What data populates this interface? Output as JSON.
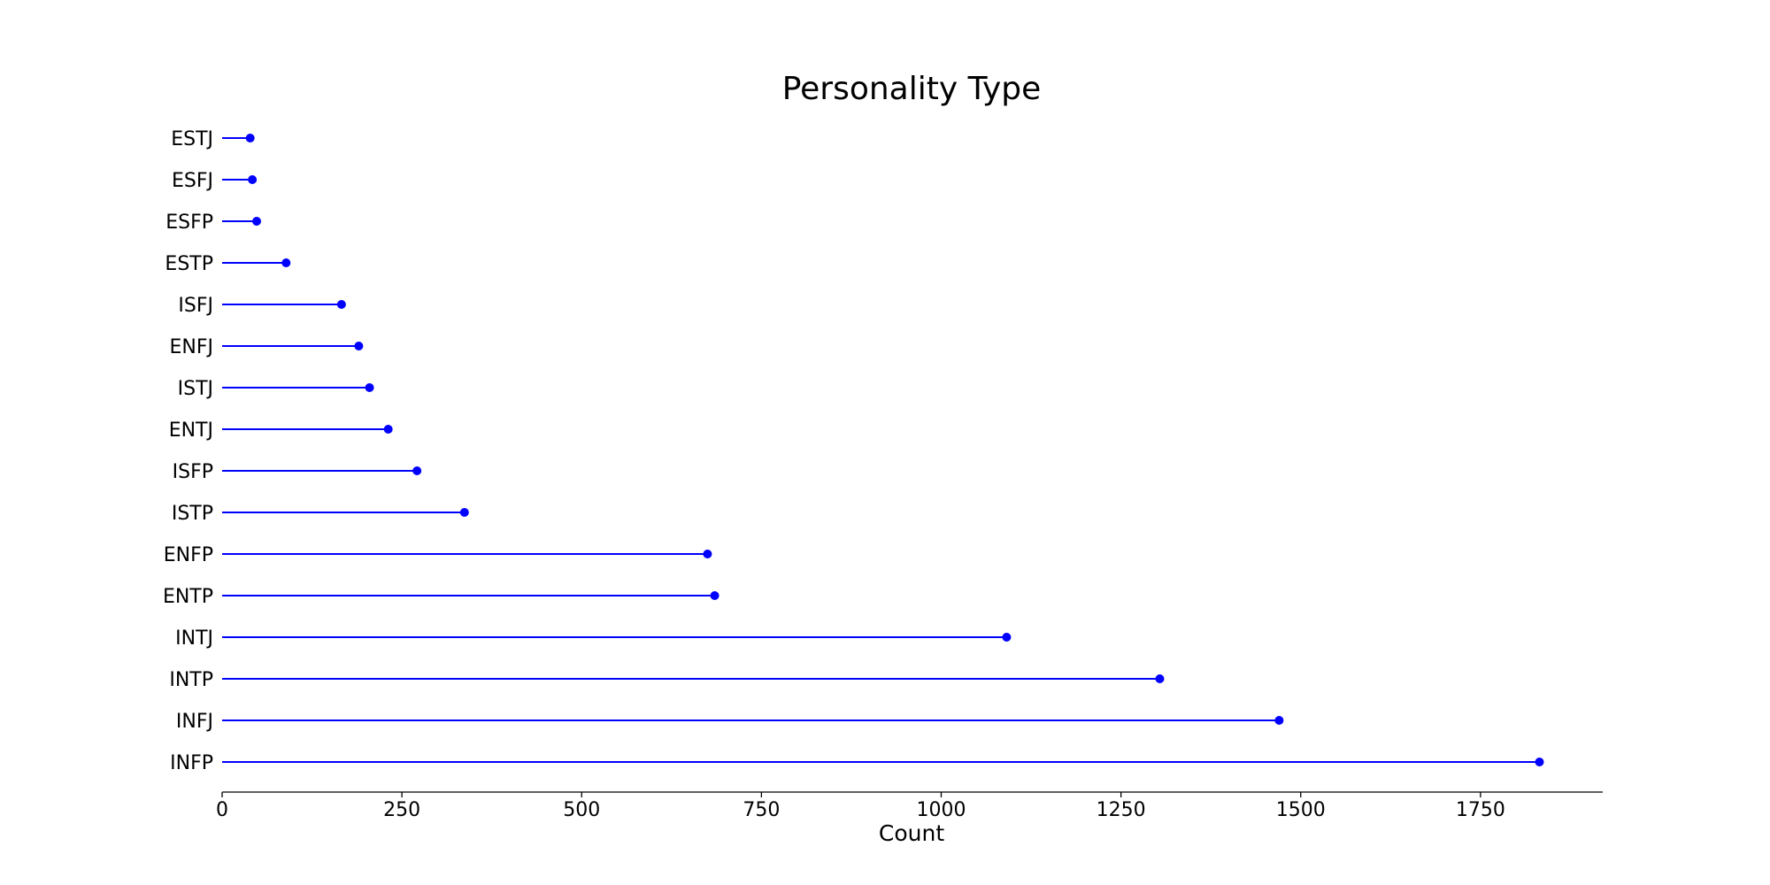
{
  "chart_data": {
    "type": "lollipop",
    "orientation": "horizontal",
    "title": "Personality Type",
    "xlabel": "Count",
    "ylabel": "",
    "xlim": [
      0,
      1920
    ],
    "xticks": [
      0,
      250,
      500,
      750,
      1000,
      1250,
      1500,
      1750
    ],
    "color": "#0000ff",
    "grid": false,
    "categories": [
      "ESTJ",
      "ESFJ",
      "ESFP",
      "ESTP",
      "ISFJ",
      "ENFJ",
      "ISTJ",
      "ENTJ",
      "ISFP",
      "ISTP",
      "ENFP",
      "ENTP",
      "INTJ",
      "INTP",
      "INFJ",
      "INFP"
    ],
    "values": [
      39,
      42,
      48,
      89,
      166,
      190,
      205,
      231,
      271,
      337,
      675,
      685,
      1091,
      1304,
      1470,
      1832
    ]
  }
}
